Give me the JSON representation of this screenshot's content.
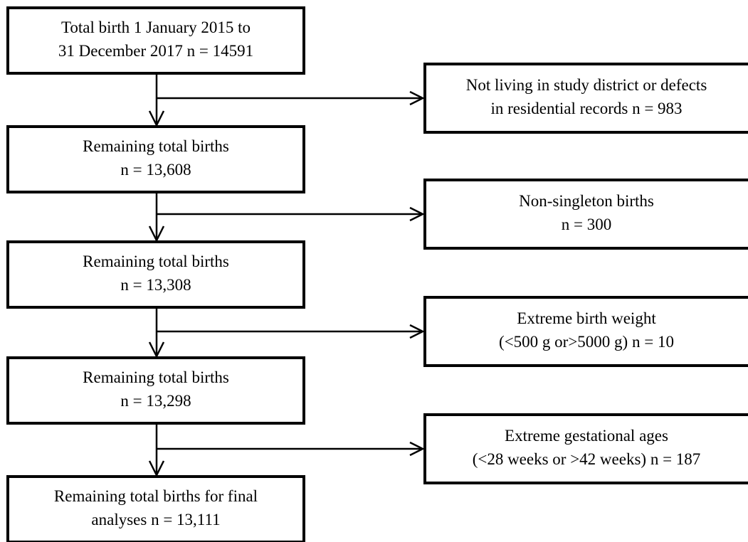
{
  "left_boxes": [
    {
      "lines": [
        "Total birth 1 January 2015 to",
        "31 December 2017 n = 14591"
      ]
    },
    {
      "lines": [
        "Remaining total births",
        "n = 13,608"
      ]
    },
    {
      "lines": [
        "Remaining total births",
        "n = 13,308"
      ]
    },
    {
      "lines": [
        "Remaining total births",
        "n = 13,298"
      ]
    },
    {
      "lines": [
        "Remaining total births for final",
        "analyses n = 13,111"
      ]
    }
  ],
  "right_boxes": [
    {
      "lines": [
        "Not living in study district or defects",
        "in residential records n = 983"
      ]
    },
    {
      "lines": [
        "Non-singleton births",
        "n = 300"
      ]
    },
    {
      "lines": [
        "Extreme birth weight",
        "(<500 g or>5000 g) n = 10"
      ]
    },
    {
      "lines": [
        "Extreme gestational ages",
        "(<28 weeks or >42 weeks) n = 187"
      ]
    }
  ]
}
